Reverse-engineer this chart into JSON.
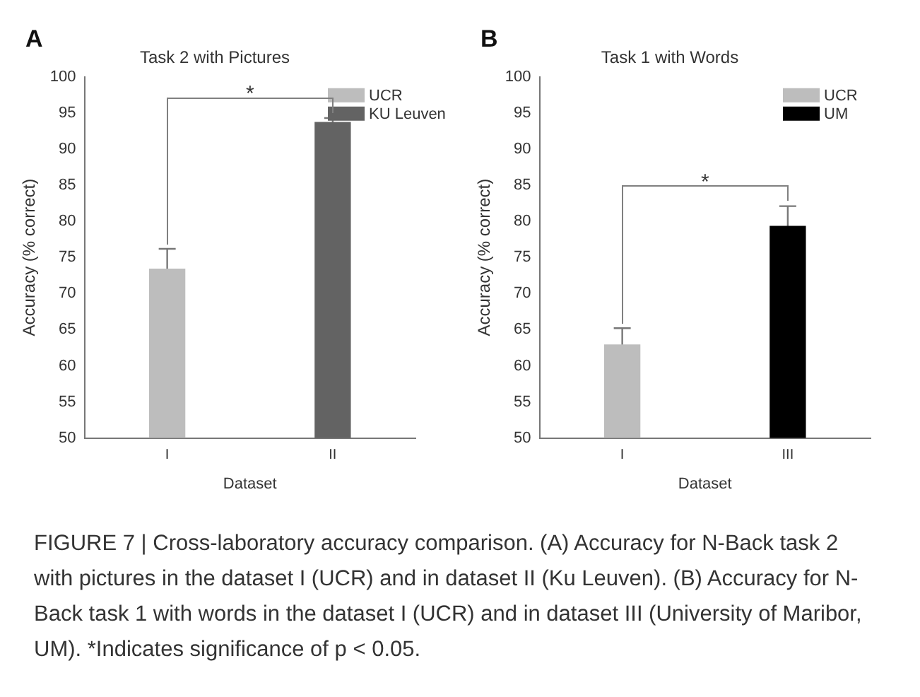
{
  "chart_data": [
    {
      "type": "bar",
      "title": "Task 2 with Pictures",
      "xlabel": "Dataset",
      "ylabel": "Accuracy (% correct)",
      "categories": [
        "I",
        "II"
      ],
      "series": [
        {
          "name": "UCR",
          "color": "#bdbdbd",
          "values": [
            73.4,
            null
          ],
          "errors": [
            2.8,
            null
          ]
        },
        {
          "name": "KU Leuven",
          "color": "#636363",
          "values": [
            null,
            93.7
          ],
          "errors": [
            null,
            0.6
          ]
        }
      ],
      "ylim": [
        50,
        100
      ],
      "yticks": [
        50,
        55,
        60,
        65,
        70,
        75,
        80,
        85,
        90,
        95,
        100
      ],
      "grid": false,
      "legend": "top right",
      "annotations": [
        "A",
        "*",
        "FIGURE 7 | Cross-laboratory accuracy comparison. (A) Accuracy for N-Back task 2 with pictures in the dataset I (UCR) and in dataset II (Ku Leuven). (B) Accuracy for N-Back task 1 with words in the dataset I (UCR) and in dataset III (University of Maribor, UM). *Indicates significance of p < 0.05."
      ]
    },
    {
      "type": "bar",
      "title": "Task 1 with Words",
      "xlabel": "Dataset",
      "ylabel": "Accuracy (% correct)",
      "categories": [
        "I",
        "III"
      ],
      "series": [
        {
          "name": "UCR",
          "color": "#bdbdbd",
          "values": [
            62.9,
            null
          ],
          "errors": [
            2.3,
            null
          ]
        },
        {
          "name": "UM",
          "color": "#000000",
          "values": [
            null,
            79.3
          ],
          "errors": [
            null,
            2.8
          ]
        }
      ],
      "ylim": [
        50,
        100
      ],
      "yticks": [
        50,
        55,
        60,
        65,
        70,
        75,
        80,
        85,
        90,
        95,
        100
      ],
      "grid": false,
      "legend": "top right",
      "annotations": [
        "B",
        "*"
      ]
    }
  ]
}
